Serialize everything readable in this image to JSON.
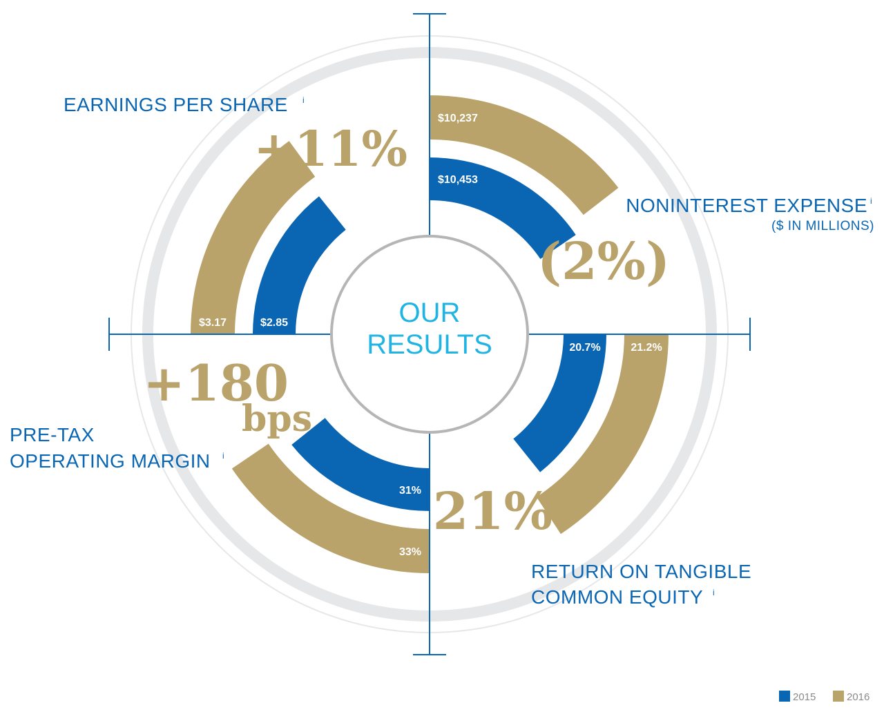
{
  "chart_data": {
    "type": "radial-bar",
    "center_label": [
      "OUR",
      "RESULTS"
    ],
    "legend": [
      {
        "name": "2015",
        "color": "#0a66b3"
      },
      {
        "name": "2016",
        "color": "#b9a36a"
      }
    ],
    "colors": {
      "primary": "#0a66b3",
      "gold": "#b9a36a",
      "center_text": "#1fb4e2",
      "ring": "#e6e7e9"
    },
    "quadrants": [
      {
        "id": "noninterest-expense",
        "title": "NONINTEREST EXPENSE",
        "subtitle": "($ IN MILLIONS)",
        "change": "(2%)",
        "values": {
          "2015": 10453,
          "2016": 10237
        },
        "labels": {
          "2015": "$10,453",
          "2016": "$10,237"
        }
      },
      {
        "id": "return-on-tangible-common-equity",
        "title": [
          "RETURN ON TANGIBLE",
          "COMMON EQUITY"
        ],
        "change": "21%",
        "values": {
          "2015": 20.7,
          "2016": 21.2
        },
        "labels": {
          "2015": "20.7%",
          "2016": "21.2%"
        }
      },
      {
        "id": "pre-tax-operating-margin",
        "title": [
          "PRE-TAX",
          "OPERATING MARGIN"
        ],
        "change": [
          "+180",
          "bps"
        ],
        "values": {
          "2015": 31,
          "2016": 33
        },
        "labels": {
          "2015": "31%",
          "2016": "33%"
        }
      },
      {
        "id": "earnings-per-share",
        "title": "EARNINGS PER SHARE",
        "change": "+11%",
        "values": {
          "2015": 2.85,
          "2016": 3.17
        },
        "labels": {
          "2015": "$2.85",
          "2016": "$3.17"
        }
      }
    ],
    "footnote_marker": "i"
  }
}
